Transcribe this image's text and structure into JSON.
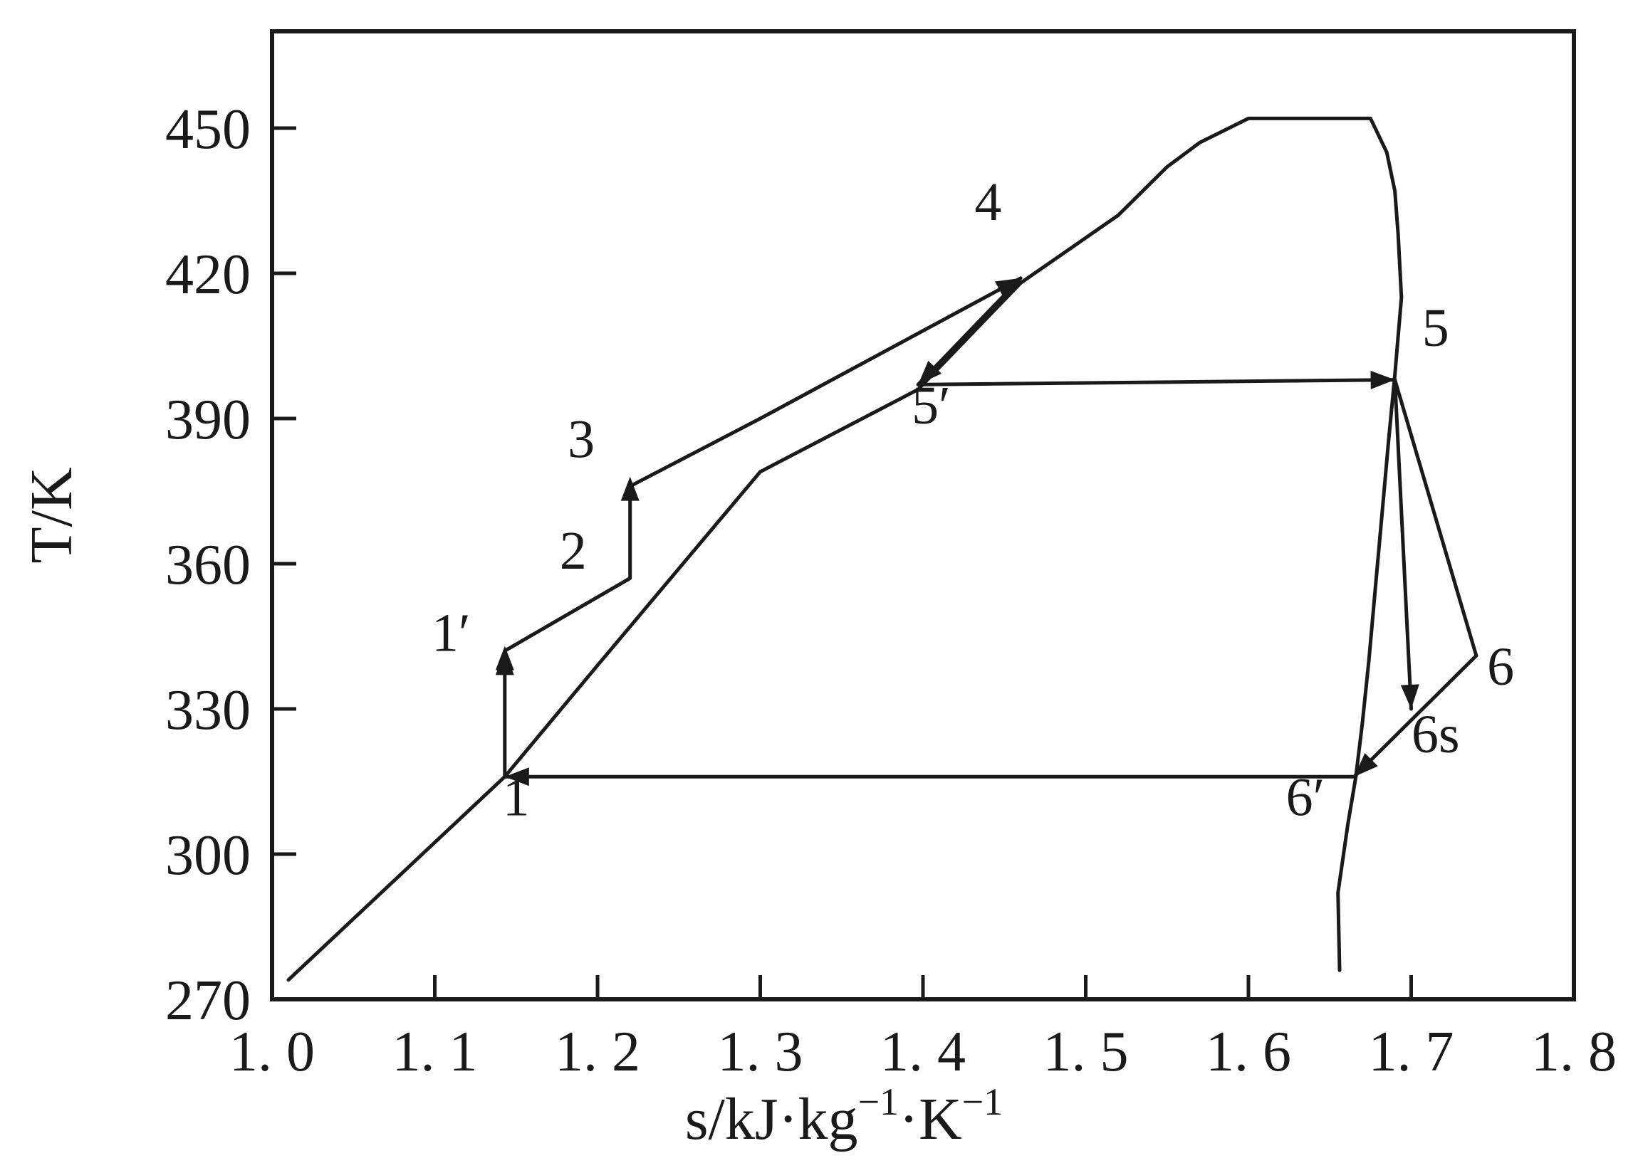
{
  "chart_data": {
    "type": "line",
    "title": "",
    "xlabel": "s/kJ·kg",
    "xlabel_sup1": "−1",
    "xlabel_mid": "·K",
    "xlabel_sup2": "−1",
    "ylabel": "T/K",
    "xlim": [
      1.0,
      1.8
    ],
    "ylim": [
      270,
      470
    ],
    "grid": false,
    "x_tick_labels": [
      "1. 0",
      "1. 1",
      "1. 2",
      "1. 3",
      "1. 4",
      "1. 5",
      "1. 6",
      "1. 7",
      "1. 8"
    ],
    "x_ticks": [
      1.0,
      1.1,
      1.2,
      1.3,
      1.4,
      1.5,
      1.6,
      1.7,
      1.8
    ],
    "y_tick_labels": [
      "270",
      "300",
      "330",
      "360",
      "390",
      "420",
      "450"
    ],
    "y_ticks": [
      270,
      300,
      330,
      360,
      390,
      420,
      450
    ],
    "series": [
      {
        "role": "saturation-dome",
        "x": [
          1.01,
          1.143,
          1.2,
          1.3,
          1.397,
          1.46,
          1.52,
          1.55,
          1.57,
          1.6,
          1.675,
          1.685,
          1.69,
          1.692,
          1.694,
          1.69,
          1.686,
          1.682,
          1.678,
          1.674,
          1.67,
          1.666,
          1.661,
          1.655,
          1.656
        ],
        "y": [
          274,
          316,
          339,
          379,
          396,
          418,
          432,
          442,
          447,
          452,
          452,
          445,
          437,
          428,
          415,
          399,
          385,
          370,
          355,
          340,
          327,
          316,
          306,
          292,
          276
        ]
      },
      {
        "role": "cycle",
        "x": [
          1.143,
          1.143,
          1.22,
          1.22,
          1.3,
          1.46,
          1.397,
          1.69,
          1.74,
          1.665,
          1.143
        ],
        "y": [
          316,
          342,
          357,
          376,
          390,
          419,
          397,
          398,
          341,
          316,
          316
        ]
      },
      {
        "role": "isentropic-expansion",
        "x": [
          1.69,
          1.7
        ],
        "y": [
          398,
          330
        ]
      }
    ],
    "arrows": [
      {
        "x": 1.143,
        "y": 342
      },
      {
        "x": 1.22,
        "y": 378
      },
      {
        "x": 1.46,
        "y": 419
      },
      {
        "x": 1.69,
        "y": 398
      },
      {
        "x": 1.7,
        "y": 330
      },
      {
        "x": 1.665,
        "y": 316
      },
      {
        "x": 1.143,
        "y": 316
      },
      {
        "x": 1.143,
        "y": 343
      },
      {
        "x": 1.397,
        "y": 397
      }
    ],
    "annotations": [
      {
        "text": "1",
        "x": 1.15,
        "y": 308
      },
      {
        "text": "1′",
        "x": 1.11,
        "y": 342
      },
      {
        "text": "2",
        "x": 1.185,
        "y": 359
      },
      {
        "text": "3",
        "x": 1.19,
        "y": 382
      },
      {
        "text": "4",
        "x": 1.44,
        "y": 431
      },
      {
        "text": "5",
        "x": 1.715,
        "y": 405
      },
      {
        "text": "5′",
        "x": 1.405,
        "y": 389
      },
      {
        "text": "6",
        "x": 1.755,
        "y": 335
      },
      {
        "text": "6s",
        "x": 1.715,
        "y": 321
      },
      {
        "text": "6′",
        "x": 1.635,
        "y": 308
      }
    ]
  }
}
